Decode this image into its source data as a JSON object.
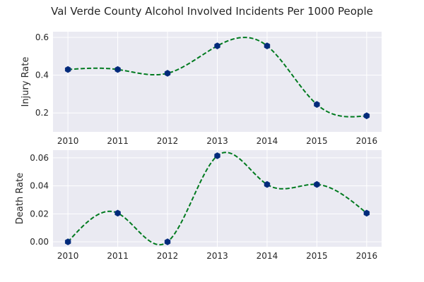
{
  "chart_data": [
    {
      "type": "line",
      "title": "Val Verde County Alcohol Involved Incidents Per 1000 People",
      "ylabel": "Injury Rate",
      "xlabel": "",
      "x": [
        2010,
        2011,
        2012,
        2013,
        2014,
        2015,
        2016
      ],
      "xticks": [
        "2010",
        "2011",
        "2012",
        "2013",
        "2014",
        "2015",
        "2016"
      ],
      "values": [
        0.43,
        0.43,
        0.41,
        0.555,
        0.555,
        0.245,
        0.185
      ],
      "yticks": [
        "0.2",
        "0.4",
        "0.6"
      ],
      "ylim": [
        0.1,
        0.63
      ],
      "xlim": [
        2009.7,
        2016.3
      ],
      "grid": true,
      "line_style": "dashed-smooth",
      "line_color": "#007a1f",
      "marker_color": "#002a7a"
    },
    {
      "type": "line",
      "title": "",
      "ylabel": "Death Rate",
      "xlabel": "",
      "x": [
        2010,
        2011,
        2012,
        2013,
        2014,
        2015,
        2016
      ],
      "xticks": [
        "2010",
        "2011",
        "2012",
        "2013",
        "2014",
        "2015",
        "2016"
      ],
      "values": [
        0.0,
        0.0205,
        0.0,
        0.0615,
        0.041,
        0.041,
        0.0205
      ],
      "yticks": [
        "0.00",
        "0.02",
        "0.04",
        "0.06"
      ],
      "ylim": [
        -0.0035,
        0.0655
      ],
      "xlim": [
        2009.7,
        2016.3
      ],
      "grid": true,
      "line_style": "dashed-smooth",
      "line_color": "#007a1f",
      "marker_color": "#002a7a"
    }
  ]
}
